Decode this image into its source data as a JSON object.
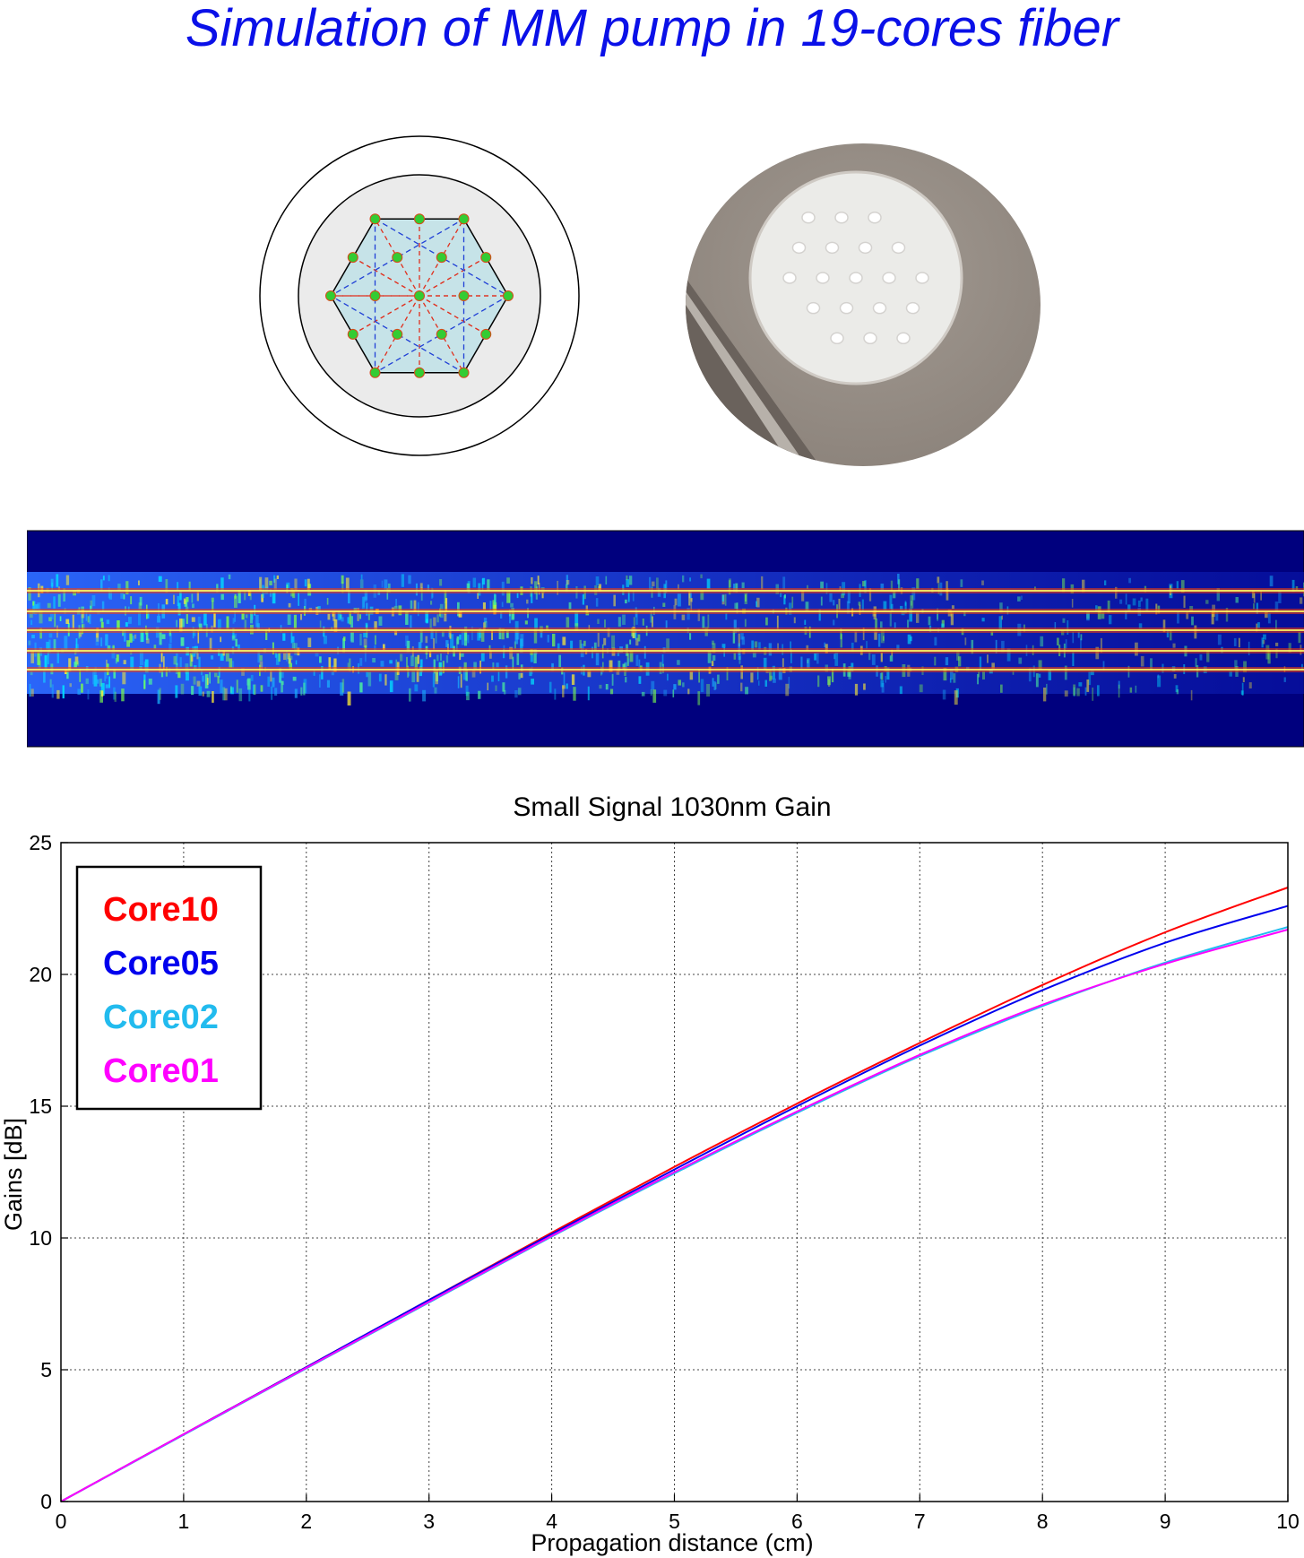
{
  "header": {
    "title": "Simulation of MM pump in 19-cores fiber"
  },
  "colors": {
    "title": "#0a10e8",
    "core10": "#ff0000",
    "core05": "#0000ee",
    "core02": "#22bbee",
    "core01": "#ff00ff",
    "field_background": "#00007e"
  },
  "chart_data": {
    "type": "line",
    "title": "Small Signal 1030nm Gain",
    "xlabel": "Propagation distance (cm)",
    "ylabel": "Gains [dB]",
    "xlim": [
      0,
      10
    ],
    "ylim": [
      0,
      25
    ],
    "xticks": [
      "0",
      "1",
      "2",
      "3",
      "4",
      "5",
      "6",
      "7",
      "8",
      "9",
      "10"
    ],
    "yticks": [
      "0",
      "5",
      "10",
      "15",
      "20",
      "25"
    ],
    "grid": true,
    "legend_position": "top-left",
    "x": [
      0,
      1,
      2,
      3,
      4,
      5,
      6,
      7,
      8,
      9,
      10
    ],
    "series": [
      {
        "name": "Core10",
        "color": "#ff0000",
        "values": [
          0,
          2.55,
          5.1,
          7.65,
          10.2,
          12.7,
          15.1,
          17.4,
          19.6,
          21.6,
          23.3
        ]
      },
      {
        "name": "Core05",
        "color": "#0000ee",
        "values": [
          0,
          2.55,
          5.1,
          7.65,
          10.15,
          12.6,
          15.0,
          17.3,
          19.4,
          21.2,
          22.6
        ]
      },
      {
        "name": "Core02",
        "color": "#22bbee",
        "values": [
          0,
          2.53,
          5.05,
          7.55,
          10.05,
          12.45,
          14.75,
          16.9,
          18.8,
          20.45,
          21.8
        ]
      },
      {
        "name": "Core01",
        "color": "#ff00ff",
        "values": [
          0,
          2.55,
          5.07,
          7.58,
          10.08,
          12.5,
          14.8,
          16.95,
          18.85,
          20.4,
          21.7
        ]
      }
    ]
  }
}
